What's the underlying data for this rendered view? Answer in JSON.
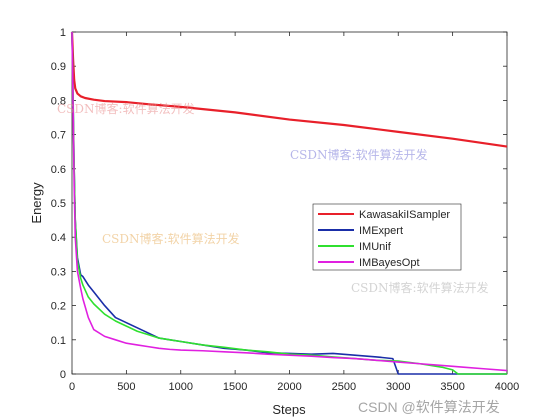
{
  "chart_data": {
    "type": "line",
    "xlabel": "Steps",
    "ylabel": "Energy",
    "xlim": [
      0,
      4000
    ],
    "ylim": [
      0,
      1
    ],
    "xticks": [
      0,
      500,
      1000,
      1500,
      2000,
      2500,
      3000,
      3500,
      4000
    ],
    "yticks": [
      0,
      0.1,
      0.2,
      0.3,
      0.4,
      0.5,
      0.6,
      0.7,
      0.8,
      0.9,
      1
    ],
    "grid": false,
    "legend": "center-right",
    "series": [
      {
        "name": "KawasakiISampler",
        "color": "#e8202a",
        "x": [
          0,
          10,
          20,
          30,
          50,
          80,
          120,
          200,
          300,
          500,
          700,
          1000,
          1500,
          2000,
          2500,
          3000,
          3500,
          4000
        ],
        "y": [
          1.0,
          0.92,
          0.86,
          0.835,
          0.82,
          0.812,
          0.807,
          0.802,
          0.798,
          0.795,
          0.789,
          0.781,
          0.765,
          0.744,
          0.728,
          0.708,
          0.688,
          0.665
        ]
      },
      {
        "name": "IMExpert",
        "color": "#1a2ea8",
        "x": [
          0,
          10,
          20,
          30,
          50,
          80,
          100,
          150,
          200,
          300,
          400,
          500,
          600,
          700,
          800,
          900,
          1000,
          1200,
          1400,
          1600,
          1800,
          2000,
          2200,
          2400,
          2600,
          2800,
          2950,
          3000,
          3500,
          4000
        ],
        "y": [
          1.0,
          0.8,
          0.6,
          0.45,
          0.34,
          0.29,
          0.285,
          0.26,
          0.24,
          0.2,
          0.165,
          0.15,
          0.135,
          0.12,
          0.105,
          0.1,
          0.095,
          0.085,
          0.075,
          0.07,
          0.062,
          0.06,
          0.058,
          0.06,
          0.055,
          0.05,
          0.045,
          0.0,
          0.0,
          0.0
        ]
      },
      {
        "name": "IMUnif",
        "color": "#2fe02f",
        "x": [
          0,
          10,
          20,
          30,
          50,
          80,
          100,
          150,
          200,
          300,
          400,
          500,
          600,
          700,
          800,
          900,
          1000,
          1200,
          1400,
          1600,
          1800,
          2000,
          2200,
          2400,
          2600,
          2800,
          3000,
          3200,
          3400,
          3500,
          3550,
          4000
        ],
        "y": [
          1.0,
          0.8,
          0.6,
          0.45,
          0.33,
          0.28,
          0.26,
          0.225,
          0.205,
          0.175,
          0.155,
          0.14,
          0.125,
          0.115,
          0.105,
          0.1,
          0.095,
          0.085,
          0.078,
          0.07,
          0.065,
          0.058,
          0.055,
          0.05,
          0.045,
          0.04,
          0.038,
          0.03,
          0.02,
          0.012,
          0.0,
          0.0
        ]
      },
      {
        "name": "IMBayesOpt",
        "color": "#e020e0",
        "x": [
          0,
          10,
          20,
          30,
          50,
          80,
          100,
          150,
          200,
          300,
          400,
          500,
          600,
          700,
          800,
          900,
          1000,
          1200,
          1400,
          1600,
          1800,
          2000,
          2200,
          2400,
          2600,
          2800,
          3000,
          3200,
          3400,
          3600,
          3800,
          4000
        ],
        "y": [
          1.0,
          0.78,
          0.55,
          0.4,
          0.3,
          0.25,
          0.22,
          0.165,
          0.13,
          0.11,
          0.1,
          0.09,
          0.085,
          0.08,
          0.075,
          0.072,
          0.07,
          0.068,
          0.065,
          0.062,
          0.058,
          0.055,
          0.052,
          0.048,
          0.045,
          0.04,
          0.035,
          0.03,
          0.025,
          0.02,
          0.015,
          0.01
        ]
      }
    ]
  },
  "watermarks": [
    {
      "text": "CSDN博客:软件算法开发",
      "color": "#e88a8a"
    },
    {
      "text": "CSDN博客:软件算法开发",
      "color": "#7a7ad8"
    },
    {
      "text": "CSDN博客:软件算法开发",
      "color": "#e8b060"
    },
    {
      "text": "CSDN博客:软件算法开发",
      "color": "#b0b0b0"
    },
    {
      "text": "CSDN @软件算法开发",
      "color": "#888888"
    }
  ]
}
